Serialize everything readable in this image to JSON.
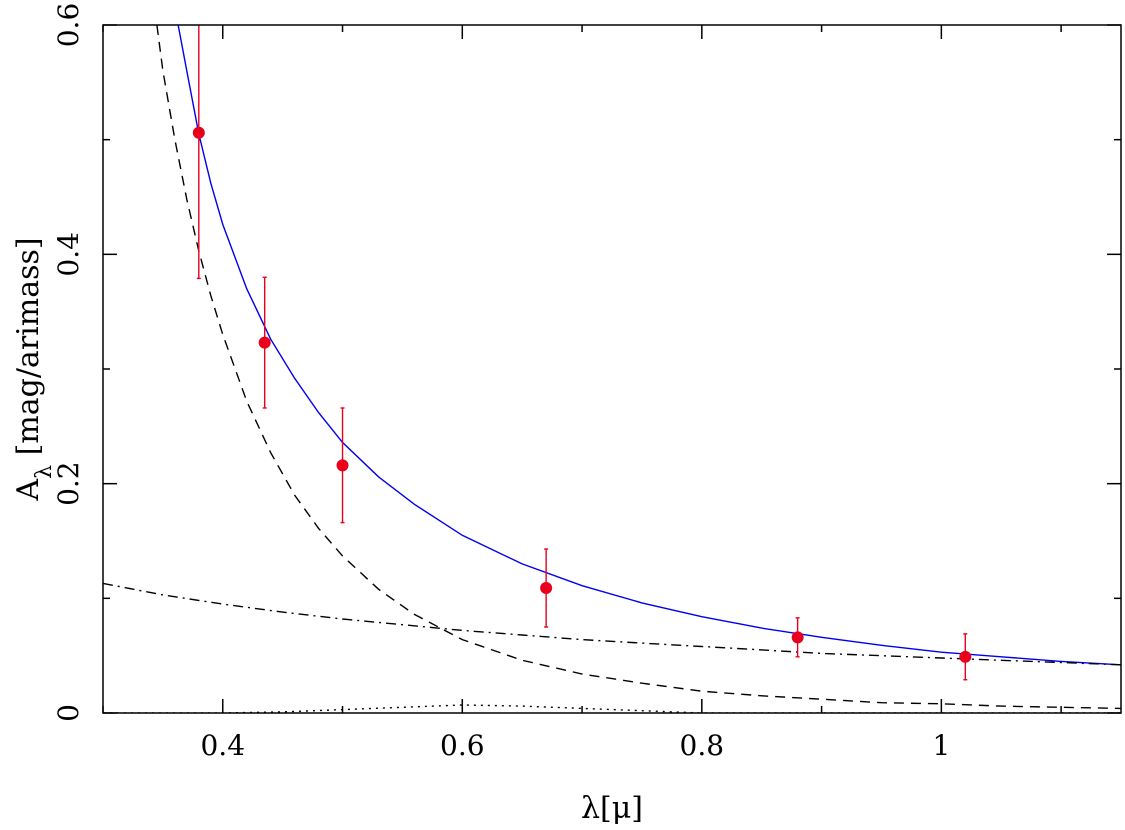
{
  "chart_data": {
    "type": "line",
    "xlabel": "λ[μ]",
    "ylabel": "A_λ [mag/arimass]",
    "xlim": [
      0.3,
      1.15
    ],
    "ylim": [
      0,
      0.6
    ],
    "x_ticks": [
      0.4,
      0.6,
      0.8,
      1.0
    ],
    "x_tick_labels": [
      "0.4",
      "0.6",
      "0.8",
      "1"
    ],
    "y_ticks": [
      0,
      0.2,
      0.4,
      0.6
    ],
    "y_tick_labels": [
      "0",
      "0.2",
      "0.4",
      "0.6"
    ],
    "grid": false,
    "points": {
      "color": "#e8001c",
      "x": [
        0.38,
        0.435,
        0.5,
        0.67,
        0.88,
        1.02
      ],
      "y": [
        0.506,
        0.323,
        0.216,
        0.109,
        0.066,
        0.049
      ],
      "y_err": [
        0.127,
        0.057,
        0.05,
        0.034,
        0.017,
        0.02
      ]
    },
    "series": [
      {
        "style": "solid",
        "color": "#0000ee",
        "x": [
          0.36,
          0.37,
          0.38,
          0.39,
          0.4,
          0.42,
          0.44,
          0.46,
          0.48,
          0.5,
          0.53,
          0.56,
          0.6,
          0.65,
          0.7,
          0.75,
          0.8,
          0.85,
          0.9,
          0.95,
          1.0,
          1.05,
          1.1,
          1.15
        ],
        "y": [
          0.615,
          0.56,
          0.505,
          0.462,
          0.426,
          0.37,
          0.326,
          0.292,
          0.262,
          0.236,
          0.206,
          0.182,
          0.155,
          0.13,
          0.111,
          0.096,
          0.084,
          0.074,
          0.066,
          0.059,
          0.053,
          0.049,
          0.045,
          0.042
        ]
      },
      {
        "style": "dashed",
        "color": "#000000",
        "x": [
          0.345,
          0.35,
          0.36,
          0.37,
          0.38,
          0.39,
          0.4,
          0.42,
          0.44,
          0.46,
          0.48,
          0.5,
          0.53,
          0.56,
          0.6,
          0.65,
          0.7,
          0.75,
          0.8,
          0.85,
          0.9,
          0.95,
          1.0,
          1.05,
          1.1,
          1.15
        ],
        "y": [
          0.6,
          0.56,
          0.5,
          0.448,
          0.403,
          0.364,
          0.33,
          0.272,
          0.227,
          0.19,
          0.161,
          0.137,
          0.108,
          0.086,
          0.064,
          0.046,
          0.034,
          0.026,
          0.019,
          0.015,
          0.012,
          0.009,
          0.008,
          0.006,
          0.005,
          0.004
        ]
      },
      {
        "style": "dashdot",
        "color": "#000000",
        "x": [
          0.3,
          0.35,
          0.4,
          0.45,
          0.5,
          0.55,
          0.6,
          0.65,
          0.7,
          0.75,
          0.8,
          0.85,
          0.9,
          0.95,
          1.0,
          1.05,
          1.1,
          1.15
        ],
        "y": [
          0.113,
          0.103,
          0.095,
          0.088,
          0.082,
          0.077,
          0.072,
          0.068,
          0.064,
          0.061,
          0.058,
          0.055,
          0.052,
          0.05,
          0.048,
          0.046,
          0.044,
          0.042
        ]
      },
      {
        "style": "dotted",
        "color": "#000000",
        "x": [
          0.3,
          0.4,
          0.45,
          0.5,
          0.55,
          0.6,
          0.65,
          0.7,
          0.75,
          0.8,
          1.15
        ],
        "y": [
          0.0,
          0.0,
          0.001,
          0.003,
          0.005,
          0.007,
          0.006,
          0.004,
          0.002,
          0.0,
          0.0
        ]
      }
    ]
  }
}
